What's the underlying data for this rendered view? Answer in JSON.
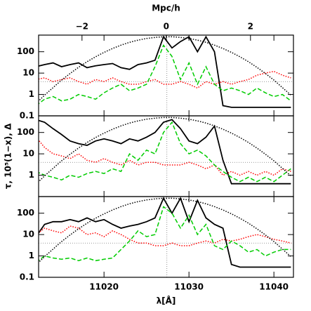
{
  "chart_data": [
    {
      "type": "line",
      "log_y": true,
      "x2label": "Mpc/h",
      "x2lim": [
        -3.03,
        3.02
      ],
      "x2ticks": [
        {
          "value": -2,
          "label": "−2"
        },
        0,
        2
      ],
      "xlim": [
        11012.3,
        11042.3
      ],
      "ylim": [
        0.1,
        600
      ],
      "yticks": [
        0.1,
        1,
        10,
        100
      ],
      "hline": 4,
      "vline": 11027.4,
      "x": [
        11012,
        11013,
        11014,
        11015,
        11016,
        11017,
        11018,
        11019,
        11020,
        11021,
        11022,
        11023,
        11024,
        11025,
        11026,
        11027,
        11028,
        11029,
        11030,
        11031,
        11032,
        11033,
        11034,
        11035,
        11036,
        11037,
        11038,
        11039,
        11040,
        11041,
        11042
      ],
      "series": [
        {
          "color": "#000000",
          "dash": "solid",
          "values": [
            20,
            25,
            30,
            20,
            25,
            30,
            18,
            22,
            25,
            28,
            18,
            15,
            25,
            30,
            40,
            500,
            150,
            300,
            500,
            100,
            500,
            100,
            0.3,
            0.25,
            0.25,
            0.25,
            0.25,
            0.25,
            0.25,
            0.25,
            0.25
          ]
        },
        {
          "color": "#ff0000",
          "dash": "dotted",
          "values": [
            5,
            6,
            4,
            5,
            6,
            4,
            3,
            5,
            4,
            6,
            4,
            3,
            3,
            4,
            5,
            3,
            3,
            4,
            3,
            2,
            4,
            3,
            4,
            3,
            4,
            5,
            8,
            10,
            12,
            8,
            6
          ]
        },
        {
          "color": "#00cc00",
          "dash": "dashed",
          "values": [
            0.3,
            0.6,
            0.8,
            0.5,
            0.6,
            1,
            0.8,
            0.6,
            1.2,
            2,
            3,
            1.5,
            2,
            3,
            20,
            200,
            60,
            5,
            30,
            3,
            20,
            3,
            1.5,
            2,
            1.5,
            1,
            2,
            1.2,
            0.8,
            1,
            0.5
          ]
        },
        {
          "color": "#000000",
          "dash": "dotted",
          "values": [
            0.38,
            0.93,
            2.1,
            4.7,
            9.6,
            18.6,
            34,
            58,
            93,
            141,
            204,
            275,
            347,
            417,
            468,
            500,
            500,
            468,
            417,
            347,
            275,
            204,
            141,
            93,
            58,
            34,
            18.6,
            9.6,
            4.7,
            2.1,
            0.93
          ]
        }
      ]
    },
    {
      "type": "line",
      "log_y": true,
      "ylabel": "τ, 10⁵(1−x), Δ",
      "xlim": [
        11012.3,
        11042.3
      ],
      "ylim": [
        0.1,
        600
      ],
      "yticks": [
        1,
        10,
        100
      ],
      "hline": 4,
      "vline": 11027.4,
      "x": [
        11012,
        11013,
        11014,
        11015,
        11016,
        11017,
        11018,
        11019,
        11020,
        11021,
        11022,
        11023,
        11024,
        11025,
        11026,
        11027,
        11028,
        11029,
        11030,
        11031,
        11032,
        11033,
        11034,
        11035,
        11036,
        11037,
        11038,
        11039,
        11040,
        11041,
        11042
      ],
      "series": [
        {
          "color": "#000000",
          "dash": "solid",
          "values": [
            400,
            300,
            150,
            80,
            40,
            30,
            25,
            40,
            50,
            40,
            30,
            50,
            40,
            60,
            100,
            300,
            400,
            150,
            40,
            30,
            60,
            200,
            5,
            0.4,
            0.4,
            0.4,
            0.4,
            0.4,
            0.4,
            0.4,
            0.4
          ]
        },
        {
          "color": "#ff0000",
          "dash": "dotted",
          "values": [
            60,
            20,
            10,
            8,
            6,
            10,
            5,
            4,
            6,
            4,
            3,
            5,
            3,
            4,
            4,
            3,
            3,
            3,
            4,
            3,
            2,
            3,
            1,
            1.5,
            1,
            1.5,
            1,
            1.5,
            1,
            2,
            1.5
          ]
        },
        {
          "color": "#00cc00",
          "dash": "dashed",
          "values": [
            1.5,
            1,
            0.8,
            0.6,
            1,
            0.8,
            1.2,
            1.5,
            1.2,
            2,
            1.5,
            10,
            5,
            15,
            10,
            100,
            300,
            30,
            10,
            15,
            8,
            3,
            1.5,
            0.8,
            0.5,
            0.8,
            0.5,
            0.8,
            0.5,
            1,
            2
          ]
        },
        {
          "color": "#000000",
          "dash": "dotted",
          "values": [
            0.38,
            0.93,
            2.1,
            4.7,
            9.6,
            18.6,
            34,
            58,
            93,
            141,
            204,
            275,
            347,
            417,
            468,
            500,
            500,
            468,
            417,
            347,
            275,
            204,
            141,
            93,
            58,
            34,
            18.6,
            9.6,
            4.7,
            2.1,
            0.93
          ]
        }
      ]
    },
    {
      "type": "line",
      "log_y": true,
      "xlabel": "λ[Å]",
      "xlim": [
        11012.3,
        11042.3
      ],
      "xticks": [
        11020,
        11030,
        11040
      ],
      "ylim": [
        0.1,
        600
      ],
      "yticks": [
        0.1,
        1,
        10,
        100
      ],
      "hline": 4,
      "vline": 11027.4,
      "x": [
        11012,
        11013,
        11014,
        11015,
        11016,
        11017,
        11018,
        11019,
        11020,
        11021,
        11022,
        11023,
        11024,
        11025,
        11026,
        11027,
        11028,
        11029,
        11030,
        11031,
        11032,
        11033,
        11034,
        11035,
        11036,
        11037,
        11038,
        11039,
        11040,
        11041,
        11042
      ],
      "series": [
        {
          "color": "#000000",
          "dash": "solid",
          "values": [
            8,
            30,
            40,
            40,
            50,
            40,
            60,
            40,
            50,
            30,
            20,
            25,
            30,
            40,
            60,
            500,
            100,
            500,
            40,
            400,
            60,
            30,
            20,
            0.4,
            0.3,
            0.3,
            0.3,
            0.3,
            0.3,
            0.3,
            0.3
          ]
        },
        {
          "color": "#ff0000",
          "dash": "dotted",
          "values": [
            10,
            20,
            15,
            12,
            25,
            20,
            10,
            12,
            8,
            15,
            10,
            6,
            4,
            4,
            3,
            3,
            4,
            3,
            3,
            4,
            5,
            4,
            6,
            5,
            6,
            8,
            10,
            8,
            6,
            5,
            4
          ]
        },
        {
          "color": "#00cc00",
          "dash": "dashed",
          "values": [
            0.5,
            1,
            0.8,
            0.7,
            0.8,
            0.6,
            0.8,
            0.6,
            0.7,
            0.8,
            2,
            5,
            15,
            8,
            10,
            200,
            100,
            20,
            80,
            10,
            30,
            3,
            2,
            5,
            3,
            1.5,
            2,
            1,
            1.5,
            2,
            2
          ]
        },
        {
          "color": "#000000",
          "dash": "dotted",
          "values": [
            0.38,
            0.93,
            2.1,
            4.7,
            9.6,
            18.6,
            34,
            58,
            93,
            141,
            204,
            275,
            347,
            417,
            468,
            500,
            500,
            468,
            417,
            347,
            275,
            204,
            141,
            93,
            58,
            34,
            18.6,
            9.6,
            4.7,
            2.1,
            0.93
          ]
        }
      ]
    }
  ]
}
